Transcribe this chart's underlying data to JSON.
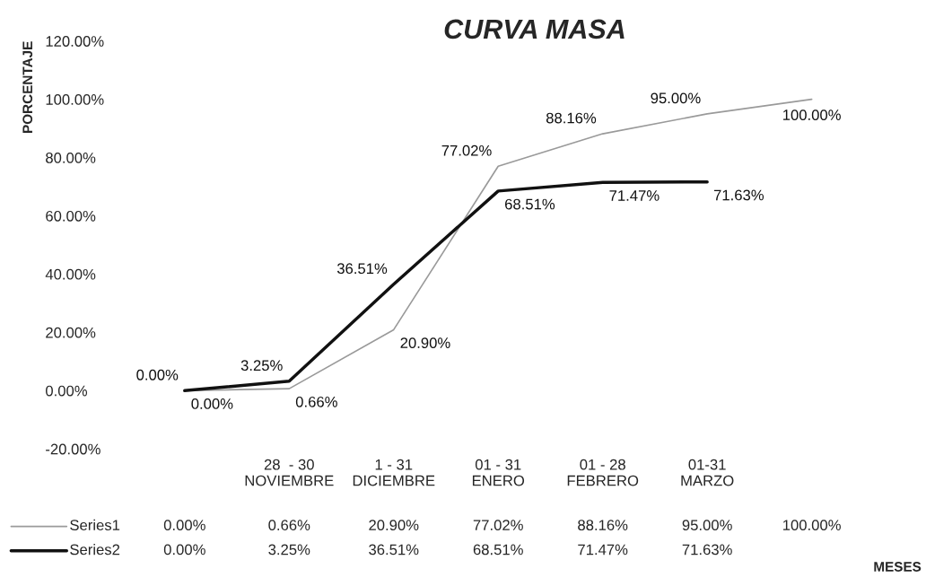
{
  "chart_data": {
    "type": "line",
    "title": "CURVA MASA",
    "annotations": [
      "MESES"
    ],
    "ylabel": "PORCENTAJE",
    "categories": [
      null,
      "28  - 30\nNOVIEMBRE",
      "1 - 31\nDICIEMBRE",
      "01 - 31\nENERO",
      "01 - 28\nFEBRERO",
      "01-31\nMARZO",
      null
    ],
    "series": [
      {
        "name": "Series1",
        "color": "#9a9a9a",
        "values": [
          0.0,
          0.66,
          20.9,
          77.02,
          88.16,
          95.0,
          100.0
        ],
        "value_labels": [
          "0.00%",
          "0.66%",
          "20.90%",
          "77.02%",
          "88.16%",
          "95.00%",
          "100.00%"
        ]
      },
      {
        "name": "Series2",
        "color": "#111111",
        "values": [
          0.0,
          3.25,
          36.51,
          68.51,
          71.47,
          71.63,
          null
        ],
        "value_labels": [
          "0.00%",
          "3.25%",
          "36.51%",
          "68.51%",
          "71.47%",
          "71.63%",
          null
        ]
      }
    ],
    "ylim": [
      -20,
      120
    ],
    "yticks": [
      {
        "value": -20,
        "label": "-20.00%"
      },
      {
        "value": 0,
        "label": "0.00%"
      },
      {
        "value": 20,
        "label": "20.00%"
      },
      {
        "value": 40,
        "label": "40.00%"
      },
      {
        "value": 60,
        "label": "60.00%"
      },
      {
        "value": 80,
        "label": "80.00%"
      },
      {
        "value": 100,
        "label": "100.00%"
      },
      {
        "value": 120,
        "label": "120.00%"
      }
    ],
    "grid": false,
    "legend": "bottom",
    "marker": "none",
    "line_style": "solid"
  }
}
